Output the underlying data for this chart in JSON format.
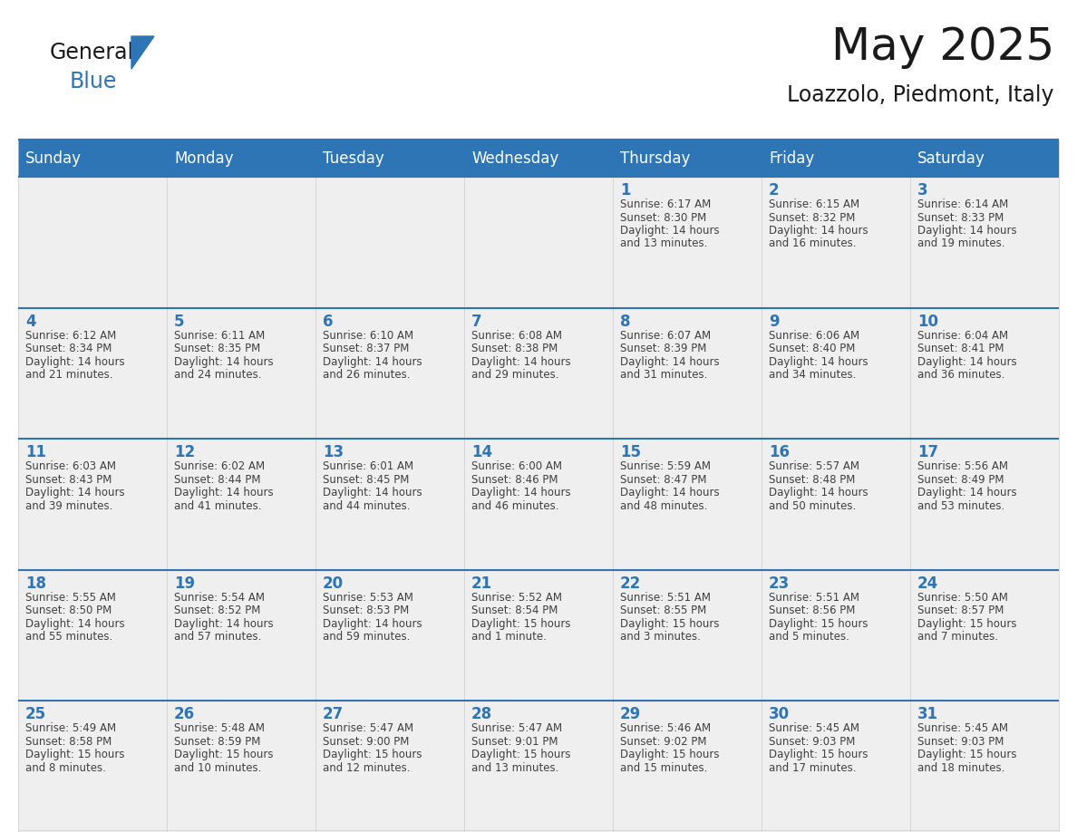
{
  "title": "May 2025",
  "subtitle": "Loazzolo, Piedmont, Italy",
  "days_of_week": [
    "Sunday",
    "Monday",
    "Tuesday",
    "Wednesday",
    "Thursday",
    "Friday",
    "Saturday"
  ],
  "header_bg": "#2E75B6",
  "header_text_color": "#FFFFFF",
  "cell_bg": "#EFEFEF",
  "cell_bg_white": "#FFFFFF",
  "day_number_color": "#2E75B6",
  "text_color": "#404040",
  "row_border_color": "#2E75B6",
  "grid_color": "#CCCCCC",
  "calendar_data": [
    [
      {
        "day": null,
        "info": ""
      },
      {
        "day": null,
        "info": ""
      },
      {
        "day": null,
        "info": ""
      },
      {
        "day": null,
        "info": ""
      },
      {
        "day": 1,
        "info": "Sunrise: 6:17 AM\nSunset: 8:30 PM\nDaylight: 14 hours\nand 13 minutes."
      },
      {
        "day": 2,
        "info": "Sunrise: 6:15 AM\nSunset: 8:32 PM\nDaylight: 14 hours\nand 16 minutes."
      },
      {
        "day": 3,
        "info": "Sunrise: 6:14 AM\nSunset: 8:33 PM\nDaylight: 14 hours\nand 19 minutes."
      }
    ],
    [
      {
        "day": 4,
        "info": "Sunrise: 6:12 AM\nSunset: 8:34 PM\nDaylight: 14 hours\nand 21 minutes."
      },
      {
        "day": 5,
        "info": "Sunrise: 6:11 AM\nSunset: 8:35 PM\nDaylight: 14 hours\nand 24 minutes."
      },
      {
        "day": 6,
        "info": "Sunrise: 6:10 AM\nSunset: 8:37 PM\nDaylight: 14 hours\nand 26 minutes."
      },
      {
        "day": 7,
        "info": "Sunrise: 6:08 AM\nSunset: 8:38 PM\nDaylight: 14 hours\nand 29 minutes."
      },
      {
        "day": 8,
        "info": "Sunrise: 6:07 AM\nSunset: 8:39 PM\nDaylight: 14 hours\nand 31 minutes."
      },
      {
        "day": 9,
        "info": "Sunrise: 6:06 AM\nSunset: 8:40 PM\nDaylight: 14 hours\nand 34 minutes."
      },
      {
        "day": 10,
        "info": "Sunrise: 6:04 AM\nSunset: 8:41 PM\nDaylight: 14 hours\nand 36 minutes."
      }
    ],
    [
      {
        "day": 11,
        "info": "Sunrise: 6:03 AM\nSunset: 8:43 PM\nDaylight: 14 hours\nand 39 minutes."
      },
      {
        "day": 12,
        "info": "Sunrise: 6:02 AM\nSunset: 8:44 PM\nDaylight: 14 hours\nand 41 minutes."
      },
      {
        "day": 13,
        "info": "Sunrise: 6:01 AM\nSunset: 8:45 PM\nDaylight: 14 hours\nand 44 minutes."
      },
      {
        "day": 14,
        "info": "Sunrise: 6:00 AM\nSunset: 8:46 PM\nDaylight: 14 hours\nand 46 minutes."
      },
      {
        "day": 15,
        "info": "Sunrise: 5:59 AM\nSunset: 8:47 PM\nDaylight: 14 hours\nand 48 minutes."
      },
      {
        "day": 16,
        "info": "Sunrise: 5:57 AM\nSunset: 8:48 PM\nDaylight: 14 hours\nand 50 minutes."
      },
      {
        "day": 17,
        "info": "Sunrise: 5:56 AM\nSunset: 8:49 PM\nDaylight: 14 hours\nand 53 minutes."
      }
    ],
    [
      {
        "day": 18,
        "info": "Sunrise: 5:55 AM\nSunset: 8:50 PM\nDaylight: 14 hours\nand 55 minutes."
      },
      {
        "day": 19,
        "info": "Sunrise: 5:54 AM\nSunset: 8:52 PM\nDaylight: 14 hours\nand 57 minutes."
      },
      {
        "day": 20,
        "info": "Sunrise: 5:53 AM\nSunset: 8:53 PM\nDaylight: 14 hours\nand 59 minutes."
      },
      {
        "day": 21,
        "info": "Sunrise: 5:52 AM\nSunset: 8:54 PM\nDaylight: 15 hours\nand 1 minute."
      },
      {
        "day": 22,
        "info": "Sunrise: 5:51 AM\nSunset: 8:55 PM\nDaylight: 15 hours\nand 3 minutes."
      },
      {
        "day": 23,
        "info": "Sunrise: 5:51 AM\nSunset: 8:56 PM\nDaylight: 15 hours\nand 5 minutes."
      },
      {
        "day": 24,
        "info": "Sunrise: 5:50 AM\nSunset: 8:57 PM\nDaylight: 15 hours\nand 7 minutes."
      }
    ],
    [
      {
        "day": 25,
        "info": "Sunrise: 5:49 AM\nSunset: 8:58 PM\nDaylight: 15 hours\nand 8 minutes."
      },
      {
        "day": 26,
        "info": "Sunrise: 5:48 AM\nSunset: 8:59 PM\nDaylight: 15 hours\nand 10 minutes."
      },
      {
        "day": 27,
        "info": "Sunrise: 5:47 AM\nSunset: 9:00 PM\nDaylight: 15 hours\nand 12 minutes."
      },
      {
        "day": 28,
        "info": "Sunrise: 5:47 AM\nSunset: 9:01 PM\nDaylight: 15 hours\nand 13 minutes."
      },
      {
        "day": 29,
        "info": "Sunrise: 5:46 AM\nSunset: 9:02 PM\nDaylight: 15 hours\nand 15 minutes."
      },
      {
        "day": 30,
        "info": "Sunrise: 5:45 AM\nSunset: 9:03 PM\nDaylight: 15 hours\nand 17 minutes."
      },
      {
        "day": 31,
        "info": "Sunrise: 5:45 AM\nSunset: 9:03 PM\nDaylight: 15 hours\nand 18 minutes."
      }
    ]
  ],
  "logo_text_general": "General",
  "logo_text_blue": "Blue",
  "logo_triangle_color": "#2E75B6",
  "title_fontsize": 36,
  "subtitle_fontsize": 17,
  "header_fontsize": 12,
  "day_num_fontsize": 12,
  "info_fontsize": 8.5
}
